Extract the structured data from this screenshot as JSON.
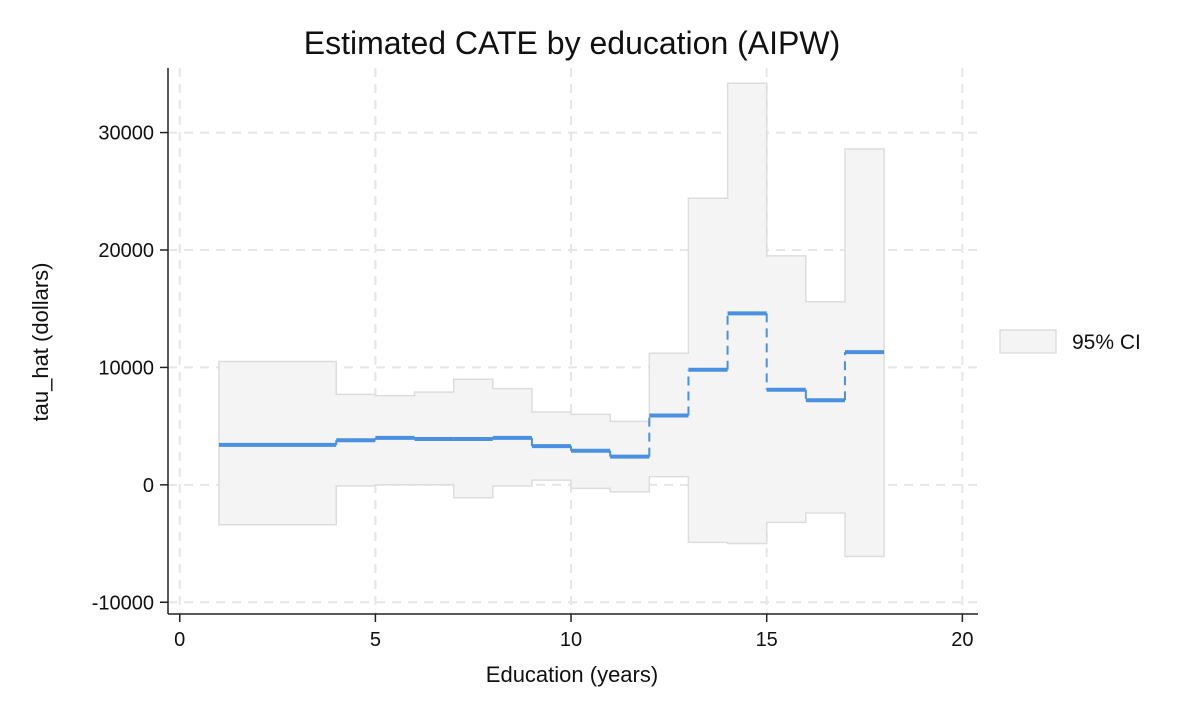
{
  "chart_data": {
    "type": "line",
    "title": "Estimated CATE by education (AIPW)",
    "xlabel": "Education (years)",
    "ylabel": "tau_hat (dollars)",
    "xlim": [
      -0.3,
      20.4
    ],
    "ylim": [
      -11000,
      35500
    ],
    "x_ticks": [
      0,
      5,
      10,
      15,
      20
    ],
    "y_ticks": [
      -10000,
      0,
      10000,
      20000,
      30000
    ],
    "x_tick_labels": [
      "0",
      "5",
      "10",
      "15",
      "20"
    ],
    "y_tick_labels": [
      "-10000",
      "0",
      "10000",
      "20000",
      "30000"
    ],
    "grid": true,
    "legend_position": "right",
    "legend": [
      {
        "label": "95% CI",
        "type": "band"
      }
    ],
    "colors": {
      "line": "#4a90e2",
      "band_fill": "#f4f4f4",
      "band_edge": "#dddddd",
      "grid": "#e6e6e6",
      "axis": "#222222"
    },
    "steps": [
      {
        "x_start": 1,
        "x_end": 4,
        "tau": 3400,
        "ci_low": -3400,
        "ci_high": 10500
      },
      {
        "x_start": 4,
        "x_end": 5,
        "tau": 3800,
        "ci_low": -100,
        "ci_high": 7700
      },
      {
        "x_start": 5,
        "x_end": 6,
        "tau": 4000,
        "ci_low": 0,
        "ci_high": 7600
      },
      {
        "x_start": 6,
        "x_end": 7,
        "tau": 3900,
        "ci_low": 0,
        "ci_high": 7900
      },
      {
        "x_start": 7,
        "x_end": 8,
        "tau": 3900,
        "ci_low": -1100,
        "ci_high": 9000
      },
      {
        "x_start": 8,
        "x_end": 9,
        "tau": 4000,
        "ci_low": -100,
        "ci_high": 8200
      },
      {
        "x_start": 9,
        "x_end": 10,
        "tau": 3300,
        "ci_low": 400,
        "ci_high": 6200
      },
      {
        "x_start": 10,
        "x_end": 11,
        "tau": 2900,
        "ci_low": -300,
        "ci_high": 6000
      },
      {
        "x_start": 11,
        "x_end": 12,
        "tau": 2400,
        "ci_low": -600,
        "ci_high": 5400
      },
      {
        "x_start": 12,
        "x_end": 13,
        "tau": 5900,
        "ci_low": 700,
        "ci_high": 11200
      },
      {
        "x_start": 13,
        "x_end": 14,
        "tau": 9800,
        "ci_low": -4900,
        "ci_high": 24400
      },
      {
        "x_start": 14,
        "x_end": 15,
        "tau": 14600,
        "ci_low": -5000,
        "ci_high": 34200
      },
      {
        "x_start": 15,
        "x_end": 16,
        "tau": 8100,
        "ci_low": -3200,
        "ci_high": 19500
      },
      {
        "x_start": 16,
        "x_end": 17,
        "tau": 7200,
        "ci_low": -2400,
        "ci_high": 15600
      },
      {
        "x_start": 17,
        "x_end": 18,
        "tau": 11300,
        "ci_low": -6100,
        "ci_high": 28600
      }
    ]
  }
}
